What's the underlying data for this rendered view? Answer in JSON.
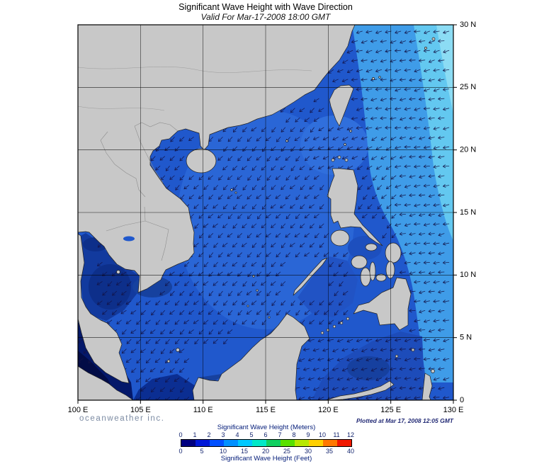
{
  "title": "Significant Wave Height with Wave Direction",
  "subtitle": "Valid For Mar-17-2008 18:00 GMT",
  "branding": "oceanweather inc.",
  "plotted_note": "Plotted at Mar 17, 2008 12:05 GMT",
  "axes": {
    "lon_ticks": [
      "100 E",
      "105 E",
      "110 E",
      "115 E",
      "120 E",
      "125 E",
      "130 E"
    ],
    "lat_ticks": [
      "0",
      "5 N",
      "10 N",
      "15 N",
      "20 N",
      "25 N",
      "30 N"
    ]
  },
  "legend": {
    "meters_label": "Significant Wave Height (Meters)",
    "feet_label": "Significant Wave Height (Feet)",
    "meters_ticks": [
      "0",
      "1",
      "2",
      "3",
      "4",
      "5",
      "6",
      "7",
      "8",
      "9",
      "10",
      "11",
      "12"
    ],
    "feet_ticks": [
      "0",
      "5",
      "10",
      "15",
      "20",
      "25",
      "30",
      "35",
      "40"
    ],
    "colors": [
      "#000080",
      "#0018d8",
      "#0050ff",
      "#0090ff",
      "#00c8ff",
      "#00e8c8",
      "#10d060",
      "#58e000",
      "#b8e800",
      "#ffd000",
      "#ff7800",
      "#f01800"
    ]
  },
  "map": {
    "palette": {
      "oceanBase": "#2058cc",
      "scsLight": "#2a66d6",
      "nscsLight": "#306fdc",
      "pacificLight": "#3f9ce8",
      "pacificCyan": "#63c8f0",
      "cornerCyan": "#8cdcf4",
      "gulfDark": "#123a9e",
      "gulfCore": "#0d2f8a",
      "deltaDark": "#16419f",
      "malacca": "#04186a",
      "malaccaCore": "#020c46",
      "javaSea": "#0b2e92",
      "borneoCoast": "#17419e",
      "suluSea": "#2153c4",
      "celebes": "#1d4cba",
      "celebesCore": "#16409f",
      "innerPhil": "#1d4fbe",
      "land": "#c8c8c8",
      "coast": "#222222",
      "arrow": "#131347",
      "grid": "#000000",
      "border": "#8f8f8f",
      "river": "#9b9b9b"
    }
  }
}
